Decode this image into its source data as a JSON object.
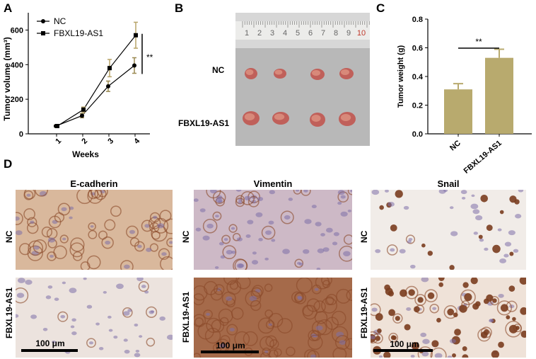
{
  "panels": {
    "a": "A",
    "b": "B",
    "c": "C",
    "d": "D"
  },
  "chart_data": [
    {
      "type": "line",
      "xlabel": "Weeks",
      "ylabel": "Tumor volume (mm³)",
      "categories": [
        "1",
        "2",
        "3",
        "4"
      ],
      "ylim": [
        0,
        700
      ],
      "yticks": [
        "0",
        "200",
        "400",
        "600"
      ],
      "legend": "top-left",
      "significance": "**",
      "series": [
        {
          "name": "NC",
          "marker": "circle",
          "color": "#000000",
          "values": [
            45,
            105,
            275,
            395
          ],
          "errors": [
            5,
            12,
            30,
            45
          ],
          "err_color": "#9b8a52"
        },
        {
          "name": "FBXL19-AS1",
          "marker": "square",
          "color": "#000000",
          "values": [
            45,
            140,
            380,
            570
          ],
          "errors": [
            5,
            15,
            50,
            75
          ],
          "err_color": "#b8a469"
        }
      ]
    },
    {
      "type": "bar",
      "ylabel": "Tumor weight (g)",
      "categories": [
        "NC",
        "FBXL19-AS1"
      ],
      "values": [
        0.31,
        0.53
      ],
      "errors": [
        0.04,
        0.06
      ],
      "ylim": [
        0,
        0.8
      ],
      "yticks": [
        "0.0",
        "0.2",
        "0.4",
        "0.6",
        "0.8"
      ],
      "bar_color": "#b8aa6e",
      "significance": "**"
    }
  ],
  "photo": {
    "row_labels": [
      "NC",
      "FBXL19-AS1"
    ],
    "ruler_numbers": [
      "1",
      "2",
      "3",
      "4",
      "5",
      "6",
      "7",
      "8",
      "9",
      "10"
    ]
  },
  "ihc": {
    "columns": [
      "E-cadherin",
      "Vimentin",
      "Snail"
    ],
    "rows": [
      "NC",
      "FBXL19-AS1"
    ],
    "scale_bar": "100 μm",
    "bg_color": "#e8e0e4",
    "stain_color": "#8a4a2a",
    "nucleus_color": "#7d6fa8"
  }
}
